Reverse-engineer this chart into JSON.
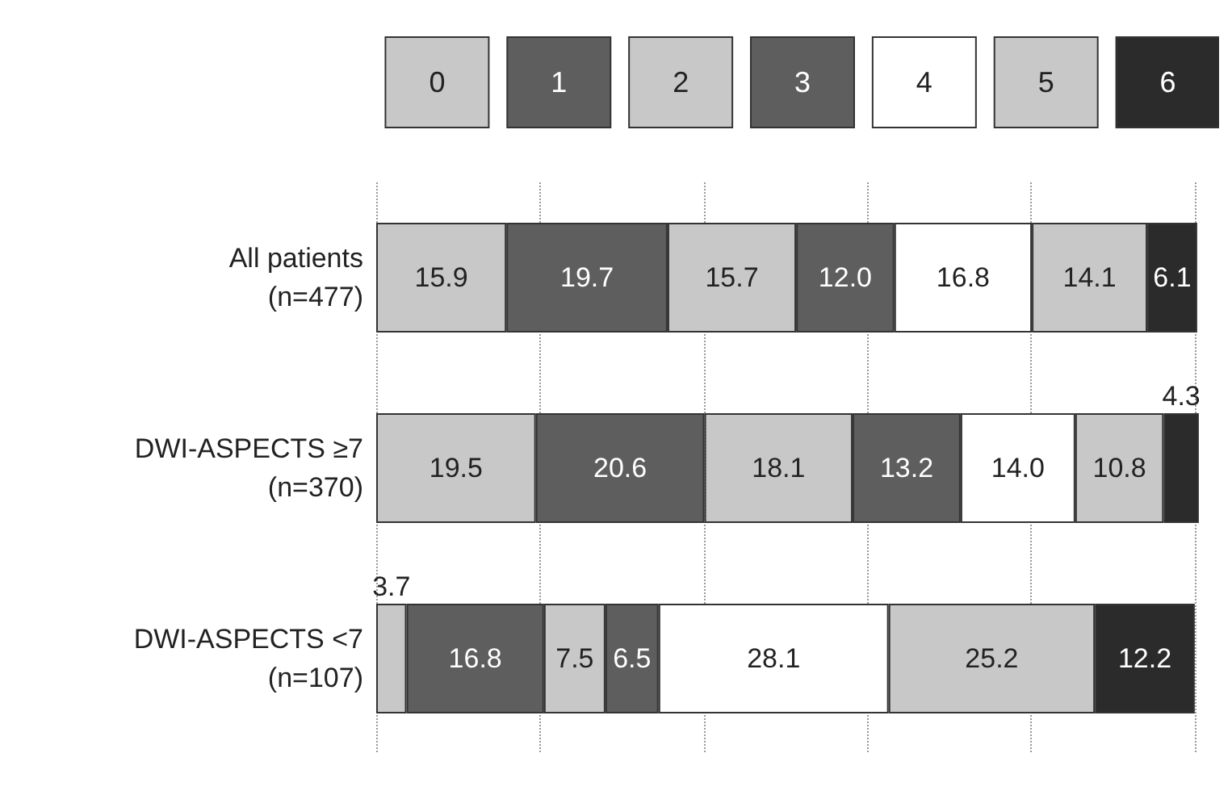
{
  "chart_data": {
    "type": "bar",
    "orientation": "horizontal",
    "stacked": true,
    "categories": [
      "All patients\n(n=477)",
      "DWI-ASPECTS ≥7\n(n=370)",
      "DWI-ASPECTS <7\n(n=107)"
    ],
    "series": [
      {
        "name": "0",
        "color": "#c8c8c8",
        "values": [
          15.9,
          19.5,
          3.7
        ]
      },
      {
        "name": "1",
        "color": "#5e5e5e",
        "values": [
          19.7,
          20.6,
          16.8
        ]
      },
      {
        "name": "2",
        "color": "#c8c8c8",
        "values": [
          15.7,
          18.1,
          7.5
        ]
      },
      {
        "name": "3",
        "color": "#5e5e5e",
        "values": [
          12.0,
          13.2,
          6.5
        ],
        "value_labels": [
          "12.0",
          "13.2",
          "6.5"
        ]
      },
      {
        "name": "4",
        "color": "#ffffff",
        "values": [
          16.8,
          14.0,
          28.1
        ],
        "value_labels": [
          "16.8",
          "14.0",
          "28.1"
        ]
      },
      {
        "name": "5",
        "color": "#c8c8c8",
        "values": [
          14.1,
          10.8,
          25.2
        ]
      },
      {
        "name": "6",
        "color": "#2b2b2b",
        "values": [
          6.1,
          4.3,
          12.2
        ]
      }
    ],
    "data_labels": true,
    "xlim": [
      0,
      101
    ],
    "xticks": [
      {
        "value": 0,
        "label": null
      },
      {
        "value": 20,
        "label": null
      },
      {
        "value": 40,
        "label": null
      },
      {
        "value": 60,
        "label": null
      },
      {
        "value": 80,
        "label": null
      },
      {
        "value": 100,
        "label": null
      }
    ],
    "grid": "x",
    "legend": "top",
    "tick_labels": "y"
  }
}
